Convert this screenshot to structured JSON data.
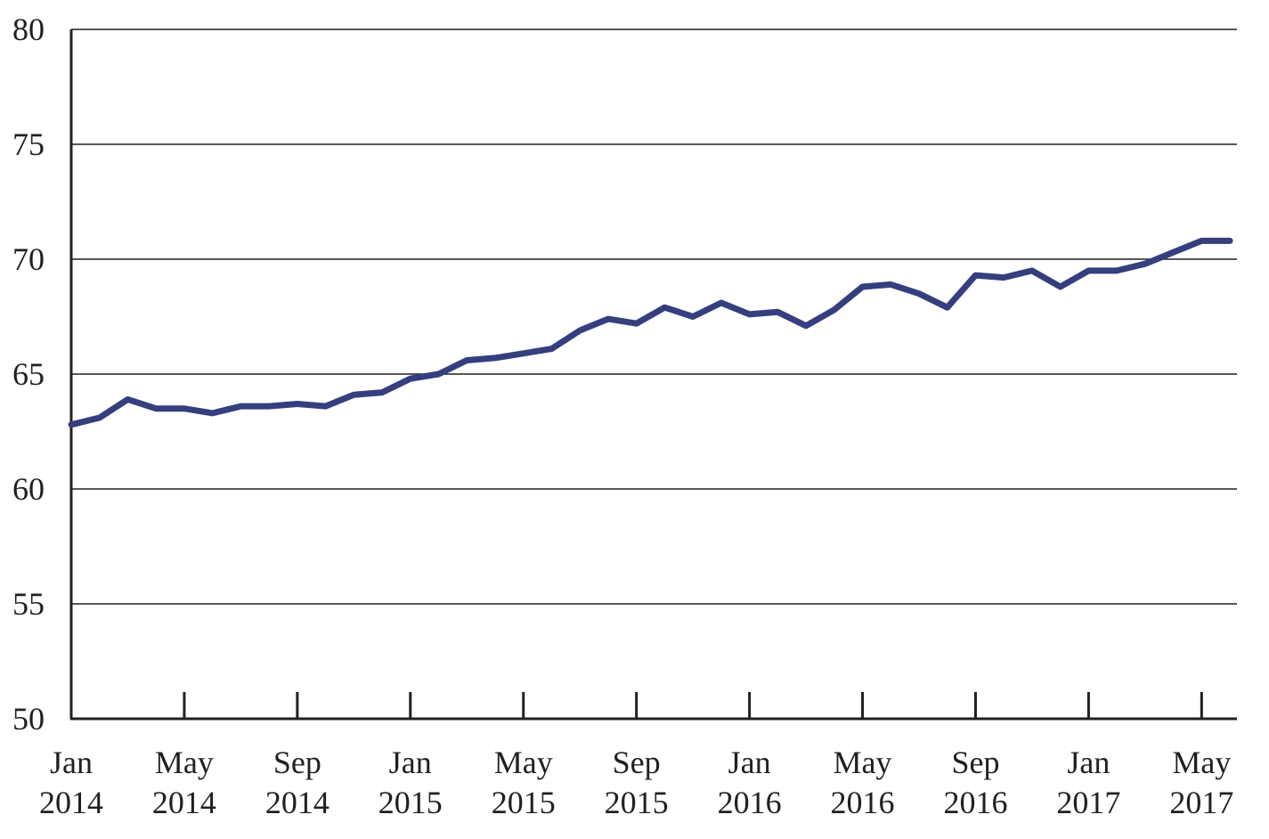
{
  "chart_data": {
    "type": "line",
    "title": "",
    "xlabel": "",
    "ylabel": "",
    "ylim": [
      50,
      80
    ],
    "yticks": [
      50,
      55,
      60,
      65,
      70,
      75,
      80
    ],
    "grid": "horizontal",
    "legend": "none",
    "x": [
      "2014-01",
      "2014-02",
      "2014-03",
      "2014-04",
      "2014-05",
      "2014-06",
      "2014-07",
      "2014-08",
      "2014-09",
      "2014-10",
      "2014-11",
      "2014-12",
      "2015-01",
      "2015-02",
      "2015-03",
      "2015-04",
      "2015-05",
      "2015-06",
      "2015-07",
      "2015-08",
      "2015-09",
      "2015-10",
      "2015-11",
      "2015-12",
      "2016-01",
      "2016-02",
      "2016-03",
      "2016-04",
      "2016-05",
      "2016-06",
      "2016-07",
      "2016-08",
      "2016-09",
      "2016-10",
      "2016-11",
      "2016-12",
      "2017-01",
      "2017-02",
      "2017-03",
      "2017-04",
      "2017-05",
      "2017-06"
    ],
    "xticks": [
      {
        "month": "Jan",
        "year": "2014"
      },
      {
        "month": "May",
        "year": "2014"
      },
      {
        "month": "Sep",
        "year": "2014"
      },
      {
        "month": "Jan",
        "year": "2015"
      },
      {
        "month": "May",
        "year": "2015"
      },
      {
        "month": "Sep",
        "year": "2015"
      },
      {
        "month": "Jan",
        "year": "2016"
      },
      {
        "month": "May",
        "year": "2016"
      },
      {
        "month": "Sep",
        "year": "2016"
      },
      {
        "month": "Jan",
        "year": "2017"
      },
      {
        "month": "May",
        "year": "2017"
      }
    ],
    "series": [
      {
        "color": "#353f7e",
        "values": [
          62.8,
          63.1,
          63.9,
          63.5,
          63.5,
          63.3,
          63.6,
          63.6,
          63.7,
          63.6,
          64.1,
          64.2,
          64.8,
          65.0,
          65.6,
          65.7,
          65.9,
          66.1,
          66.9,
          67.4,
          67.2,
          67.9,
          67.5,
          68.1,
          67.6,
          67.7,
          67.1,
          67.8,
          68.8,
          68.9,
          68.5,
          67.9,
          69.3,
          69.2,
          69.5,
          68.8,
          69.5,
          69.5,
          69.8,
          70.3,
          70.8,
          70.8
        ]
      }
    ]
  }
}
